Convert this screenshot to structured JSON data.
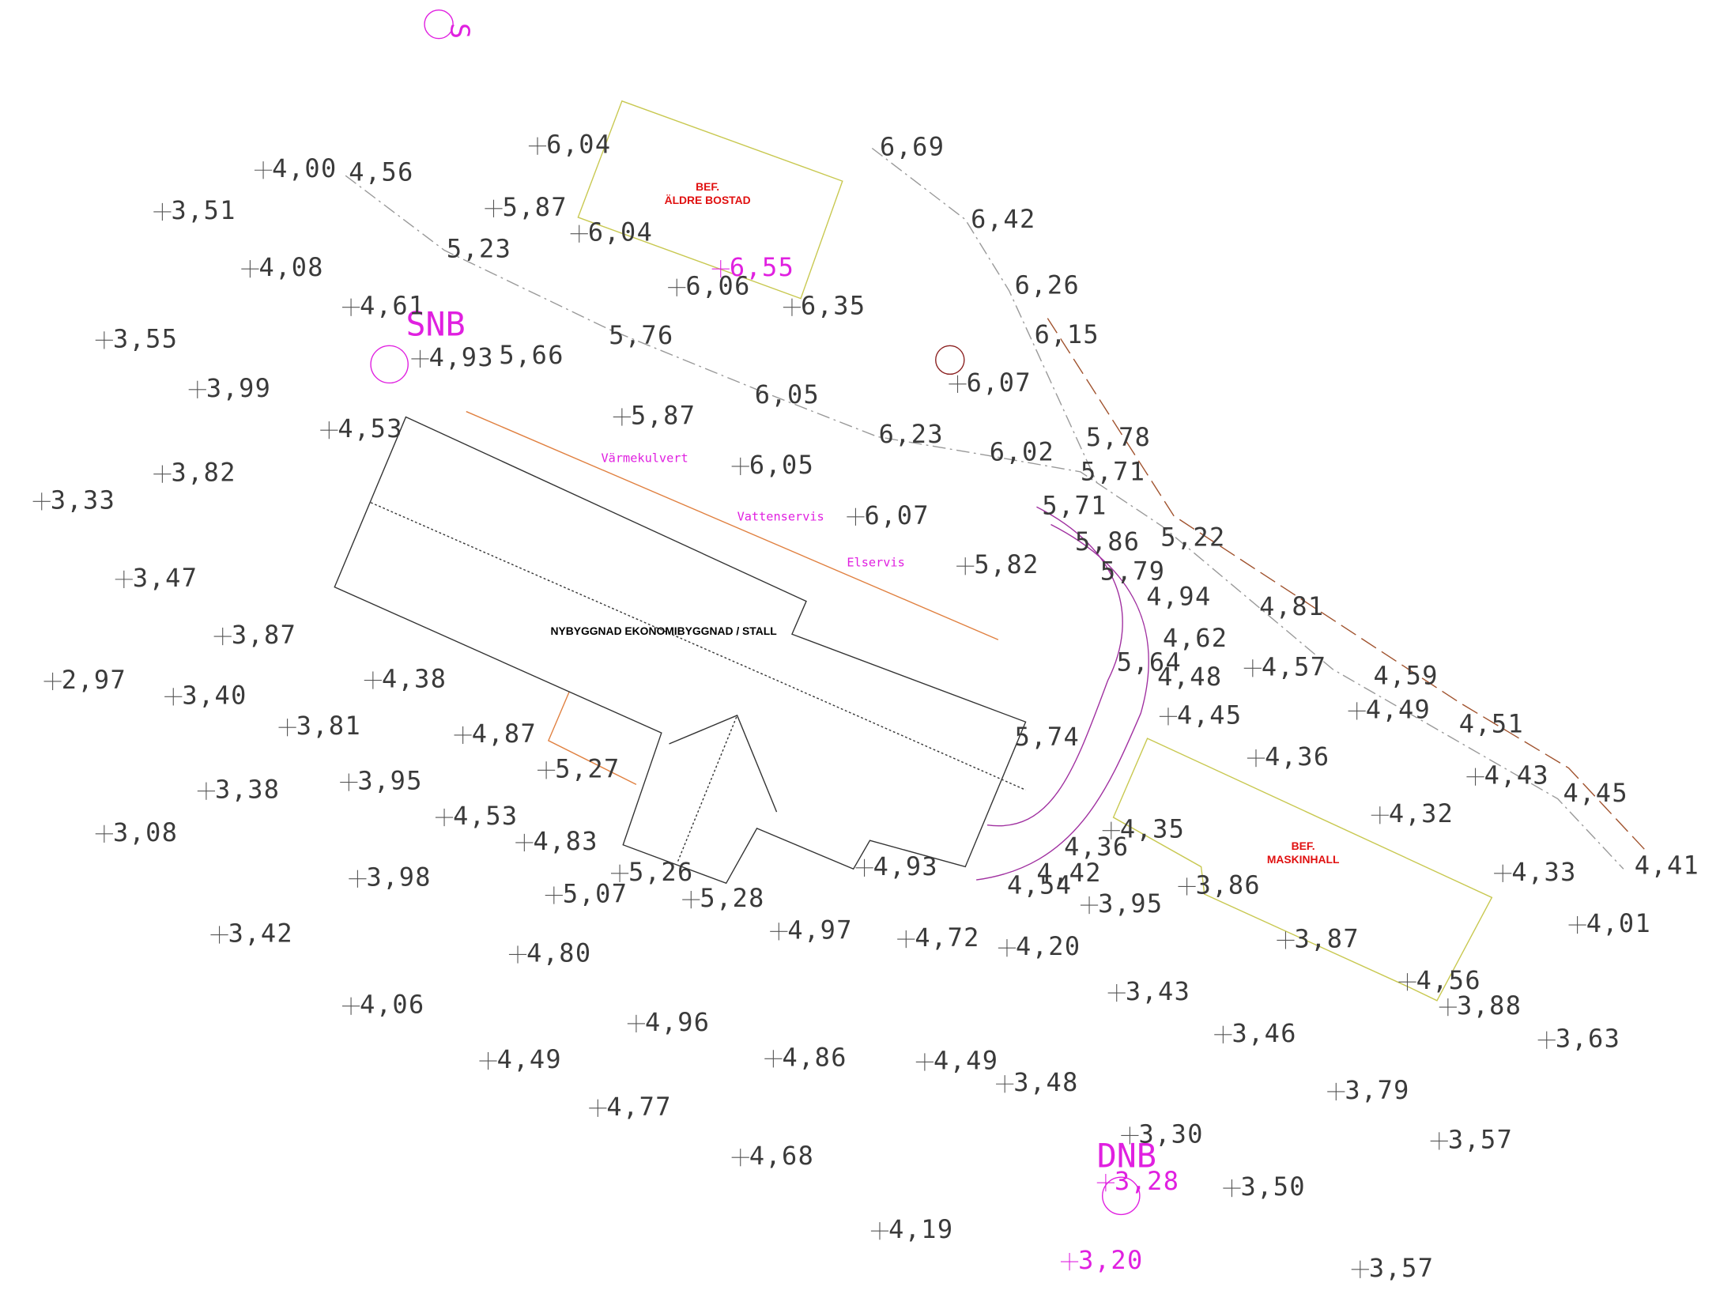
{
  "points": [
    {
      "label": "4,00"
    },
    {
      "label": "3,51"
    },
    {
      "label": "4,08"
    },
    {
      "label": "4,61"
    },
    {
      "label": "3,55"
    },
    {
      "label": "3,99"
    },
    {
      "label": "4,53"
    },
    {
      "label": "3,82"
    },
    {
      "label": "3,33"
    },
    {
      "label": "3,47"
    },
    {
      "label": "3,87"
    },
    {
      "label": "2,97"
    },
    {
      "label": "3,40"
    },
    {
      "label": "3,81"
    },
    {
      "label": "4,38"
    },
    {
      "label": "4,87"
    },
    {
      "label": "3,38"
    },
    {
      "label": "3,95"
    },
    {
      "label": "3,08"
    },
    {
      "label": "4,53"
    },
    {
      "label": "4,83"
    },
    {
      "label": "3,98"
    },
    {
      "label": "3,42"
    },
    {
      "label": "5,07"
    },
    {
      "label": "5,26"
    },
    {
      "label": "5,28"
    },
    {
      "label": "5,27"
    },
    {
      "label": "4,80"
    },
    {
      "label": "4,06"
    },
    {
      "label": "4,96"
    },
    {
      "label": "4,49"
    },
    {
      "label": "4,77"
    },
    {
      "label": "4,86"
    },
    {
      "label": "4,97"
    },
    {
      "label": "4,72"
    },
    {
      "label": "4,20"
    },
    {
      "label": "4,49"
    },
    {
      "label": "3,48"
    },
    {
      "label": "4,68"
    },
    {
      "label": "4,19"
    },
    {
      "label": "3,30"
    },
    {
      "label": "3,50"
    },
    {
      "label": "3,43"
    },
    {
      "label": "3,46"
    },
    {
      "label": "3,95"
    },
    {
      "label": "3,86"
    },
    {
      "label": "3,87"
    },
    {
      "label": "3,88"
    },
    {
      "label": "3,63"
    },
    {
      "label": "3,79"
    },
    {
      "label": "3,57"
    },
    {
      "label": "3,57"
    },
    {
      "label": "4,01"
    },
    {
      "label": "4,33"
    },
    {
      "label": "4,32"
    },
    {
      "label": "4,43"
    },
    {
      "label": "4,36"
    },
    {
      "label": "4,45"
    },
    {
      "label": "4,49"
    },
    {
      "label": "4,57"
    },
    {
      "label": "4,93"
    },
    {
      "label": "6,04"
    },
    {
      "label": "5,87"
    },
    {
      "label": "6,04"
    },
    {
      "label": "6,06"
    },
    {
      "label": "6,35"
    },
    {
      "label": "5,87"
    },
    {
      "label": "6,05"
    },
    {
      "label": "6,07"
    },
    {
      "label": "5,82"
    },
    {
      "label": "6,07"
    },
    {
      "label": "4,93"
    },
    {
      "label": "4,35"
    },
    {
      "label": "4,56"
    }
  ],
  "line_labels": [
    "4,56",
    "5,23",
    "5,76",
    "6,05",
    "6,23",
    "6,02",
    "6,69",
    "6,42",
    "6,26",
    "6,15",
    "5,78",
    "5,71",
    "5,22",
    "4,81",
    "4,59",
    "4,51",
    "4,45",
    "4,41",
    "5,66",
    "5,71",
    "5,79",
    "5,64",
    "4,62",
    "4,48",
    "4,94",
    "5,74",
    "4,36",
    "4,42",
    "4,54",
    "5,86"
  ],
  "pink_points": [
    {
      "label": "6,55"
    },
    {
      "label": "3,28"
    },
    {
      "label": "3,20"
    }
  ],
  "markers": {
    "snb": "SNB",
    "dnb": "DNB",
    "s": "S"
  },
  "buildings": {
    "aldre_bostad": {
      "line1": "BEF.",
      "line2": "ÄLDRE BOSTAD"
    },
    "maskinhall": {
      "line1": "BEF.",
      "line2": "MASKINHALL"
    },
    "new": "NYBYGGNAD EKONOMIBYGGNAD / STALL"
  },
  "services": {
    "varme": "Värmekulvert",
    "vatten": "Vattenservis",
    "el": "Elservis"
  }
}
